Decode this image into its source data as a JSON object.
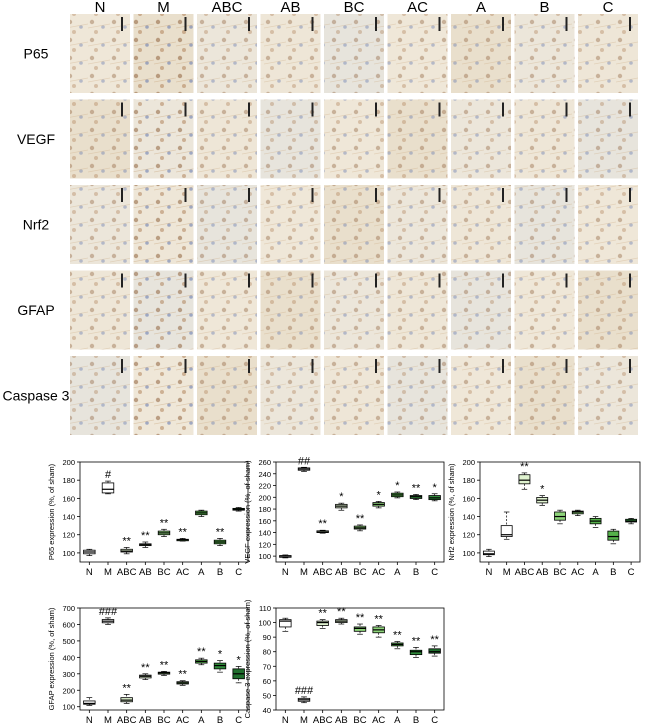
{
  "groups": [
    "N",
    "M",
    "ABC",
    "AB",
    "BC",
    "AC",
    "A",
    "B",
    "C"
  ],
  "stains": [
    "P65",
    "VEGF",
    "Nrf2",
    "GFAP",
    "Caspase 3"
  ],
  "colors": {
    "white_box": "#ffffff",
    "light_green": "#dff2cf",
    "mid_green": "#8ed47a",
    "green": "#55b04a",
    "dark_green": "#2f8a3a",
    "darkest_green": "#1f6e2d",
    "tissue_base": "#e8e0d0",
    "tissue_brown": "#a0683a",
    "tissue_blue": "#4a63a8"
  },
  "chart_data": [
    {
      "type": "box",
      "categories": [
        "N",
        "M",
        "ABC",
        "AB",
        "BC",
        "AC",
        "A",
        "B",
        "C"
      ],
      "ylabel": "P65 expression (%, of sham)",
      "ylim": [
        90,
        200
      ],
      "yticks": [
        100,
        120,
        140,
        160,
        180,
        200
      ],
      "boxes": [
        {
          "q1": 99,
          "median": 101,
          "q3": 103,
          "min": 97,
          "max": 104,
          "sig": "",
          "color": "white_box"
        },
        {
          "q1": 166,
          "median": 170,
          "q3": 177,
          "min": 165,
          "max": 179,
          "sig": "#",
          "color": "white_box"
        },
        {
          "q1": 101,
          "median": 102,
          "q3": 104,
          "min": 99,
          "max": 106,
          "sig": "**",
          "color": "light_green"
        },
        {
          "q1": 108,
          "median": 109,
          "q3": 110,
          "min": 106,
          "max": 112,
          "sig": "**",
          "color": "light_green"
        },
        {
          "q1": 120,
          "median": 122,
          "q3": 124,
          "min": 118,
          "max": 126,
          "sig": "**",
          "color": "mid_green"
        },
        {
          "q1": 114,
          "median": 114.5,
          "q3": 115,
          "min": 113,
          "max": 116,
          "sig": "**",
          "color": "mid_green"
        },
        {
          "q1": 142,
          "median": 144,
          "q3": 146,
          "min": 140,
          "max": 147,
          "sig": "",
          "color": "green"
        },
        {
          "q1": 110,
          "median": 112,
          "q3": 114,
          "min": 108,
          "max": 116,
          "sig": "**",
          "color": "green"
        },
        {
          "q1": 147,
          "median": 148,
          "q3": 149,
          "min": 146,
          "max": 150,
          "sig": "",
          "color": "dark_green"
        }
      ]
    },
    {
      "type": "box",
      "categories": [
        "N",
        "M",
        "ABC",
        "AB",
        "BC",
        "AC",
        "A",
        "B",
        "C"
      ],
      "ylabel": "VEGF expression (%, of sham)",
      "ylim": [
        90,
        260
      ],
      "yticks": [
        100,
        120,
        140,
        160,
        180,
        200,
        220,
        240,
        260
      ],
      "boxes": [
        {
          "q1": 98,
          "median": 100,
          "q3": 101,
          "min": 97,
          "max": 102,
          "sig": "",
          "color": "white_box"
        },
        {
          "q1": 246,
          "median": 248,
          "q3": 250,
          "min": 244,
          "max": 251,
          "sig": "##",
          "color": "white_box"
        },
        {
          "q1": 140,
          "median": 141,
          "q3": 143,
          "min": 139,
          "max": 144,
          "sig": "**",
          "color": "light_green"
        },
        {
          "q1": 182,
          "median": 185,
          "q3": 188,
          "min": 178,
          "max": 190,
          "sig": "*",
          "color": "light_green"
        },
        {
          "q1": 146,
          "median": 148,
          "q3": 151,
          "min": 143,
          "max": 153,
          "sig": "**",
          "color": "mid_green"
        },
        {
          "q1": 185,
          "median": 188,
          "q3": 191,
          "min": 182,
          "max": 193,
          "sig": "*",
          "color": "mid_green"
        },
        {
          "q1": 201,
          "median": 204,
          "q3": 207,
          "min": 199,
          "max": 209,
          "sig": "*",
          "color": "green"
        },
        {
          "q1": 198,
          "median": 201,
          "q3": 203,
          "min": 196,
          "max": 205,
          "sig": "**",
          "color": "dark_green"
        },
        {
          "q1": 196,
          "median": 199,
          "q3": 203,
          "min": 194,
          "max": 206,
          "sig": "*",
          "color": "dark_green"
        }
      ]
    },
    {
      "type": "box",
      "categories": [
        "N",
        "M",
        "ABC",
        "AB",
        "BC",
        "AC",
        "A",
        "B",
        "C"
      ],
      "ylabel": "Nrf2 expression (%, of sham)",
      "ylim": [
        90,
        200
      ],
      "yticks": [
        100,
        120,
        140,
        160,
        180,
        200
      ],
      "boxes": [
        {
          "q1": 98,
          "median": 99,
          "q3": 102,
          "min": 96,
          "max": 104,
          "sig": "",
          "color": "white_box"
        },
        {
          "q1": 118,
          "median": 120,
          "q3": 130,
          "min": 115,
          "max": 145,
          "sig": "",
          "color": "white_box"
        },
        {
          "q1": 176,
          "median": 180,
          "q3": 186,
          "min": 170,
          "max": 188,
          "sig": "**",
          "color": "light_green"
        },
        {
          "q1": 155,
          "median": 158,
          "q3": 161,
          "min": 152,
          "max": 163,
          "sig": "*",
          "color": "light_green"
        },
        {
          "q1": 136,
          "median": 140,
          "q3": 145,
          "min": 132,
          "max": 147,
          "sig": "",
          "color": "mid_green"
        },
        {
          "q1": 143,
          "median": 145,
          "q3": 146,
          "min": 141,
          "max": 147,
          "sig": "",
          "color": "mid_green"
        },
        {
          "q1": 132,
          "median": 135,
          "q3": 138,
          "min": 128,
          "max": 140,
          "sig": "",
          "color": "green"
        },
        {
          "q1": 114,
          "median": 118,
          "q3": 124,
          "min": 110,
          "max": 126,
          "sig": "",
          "color": "green"
        },
        {
          "q1": 134,
          "median": 135,
          "q3": 137,
          "min": 132,
          "max": 138,
          "sig": "",
          "color": "dark_green"
        }
      ]
    },
    {
      "type": "box",
      "categories": [
        "N",
        "M",
        "ABC",
        "AB",
        "BC",
        "AC",
        "A",
        "B",
        "C"
      ],
      "ylabel": "GFAP expression (%, of sham)",
      "ylim": [
        80,
        700
      ],
      "yticks": [
        100,
        200,
        300,
        400,
        500,
        600,
        700
      ],
      "boxes": [
        {
          "q1": 115,
          "median": 120,
          "q3": 135,
          "min": 108,
          "max": 155,
          "sig": "",
          "color": "white_box"
        },
        {
          "q1": 610,
          "median": 620,
          "q3": 630,
          "min": 600,
          "max": 640,
          "sig": "###",
          "color": "white_box"
        },
        {
          "q1": 130,
          "median": 140,
          "q3": 155,
          "min": 120,
          "max": 175,
          "sig": "**",
          "color": "light_green"
        },
        {
          "q1": 275,
          "median": 285,
          "q3": 292,
          "min": 265,
          "max": 300,
          "sig": "**",
          "color": "light_green"
        },
        {
          "q1": 298,
          "median": 305,
          "q3": 310,
          "min": 290,
          "max": 315,
          "sig": "**",
          "color": "mid_green"
        },
        {
          "q1": 238,
          "median": 245,
          "q3": 252,
          "min": 230,
          "max": 258,
          "sig": "**",
          "color": "mid_green"
        },
        {
          "q1": 365,
          "median": 375,
          "q3": 385,
          "min": 355,
          "max": 395,
          "sig": "**",
          "color": "green"
        },
        {
          "q1": 330,
          "median": 350,
          "q3": 365,
          "min": 310,
          "max": 380,
          "sig": "*",
          "color": "dark_green"
        },
        {
          "q1": 270,
          "median": 300,
          "q3": 330,
          "min": 245,
          "max": 345,
          "sig": "*",
          "color": "darkest_green"
        }
      ]
    },
    {
      "type": "box",
      "categories": [
        "N",
        "M",
        "ABC",
        "AB",
        "BC",
        "AC",
        "A",
        "B",
        "C"
      ],
      "ylabel": "Caspase 3 expression (%, of sham)",
      "ylim": [
        40,
        110
      ],
      "yticks": [
        40,
        50,
        60,
        70,
        80,
        90,
        100,
        110
      ],
      "boxes": [
        {
          "q1": 97,
          "median": 101,
          "q3": 102,
          "min": 94,
          "max": 103,
          "sig": "",
          "color": "white_box"
        },
        {
          "q1": 46,
          "median": 47,
          "q3": 48,
          "min": 45,
          "max": 49,
          "sig": "###",
          "color": "white_box"
        },
        {
          "q1": 98,
          "median": 100,
          "q3": 101,
          "min": 96,
          "max": 102,
          "sig": "**",
          "color": "light_green"
        },
        {
          "q1": 100,
          "median": 101,
          "q3": 102,
          "min": 99,
          "max": 103,
          "sig": "**",
          "color": "light_green"
        },
        {
          "q1": 94,
          "median": 96,
          "q3": 97,
          "min": 92,
          "max": 99,
          "sig": "**",
          "color": "mid_green"
        },
        {
          "q1": 93,
          "median": 95,
          "q3": 97,
          "min": 90,
          "max": 98,
          "sig": "**",
          "color": "mid_green"
        },
        {
          "q1": 84,
          "median": 85,
          "q3": 86,
          "min": 82,
          "max": 87,
          "sig": "**",
          "color": "green"
        },
        {
          "q1": 78,
          "median": 80,
          "q3": 81,
          "min": 76,
          "max": 83,
          "sig": "**",
          "color": "dark_green"
        },
        {
          "q1": 79,
          "median": 80,
          "q3": 82,
          "min": 77,
          "max": 84,
          "sig": "**",
          "color": "darkest_green"
        }
      ]
    }
  ]
}
